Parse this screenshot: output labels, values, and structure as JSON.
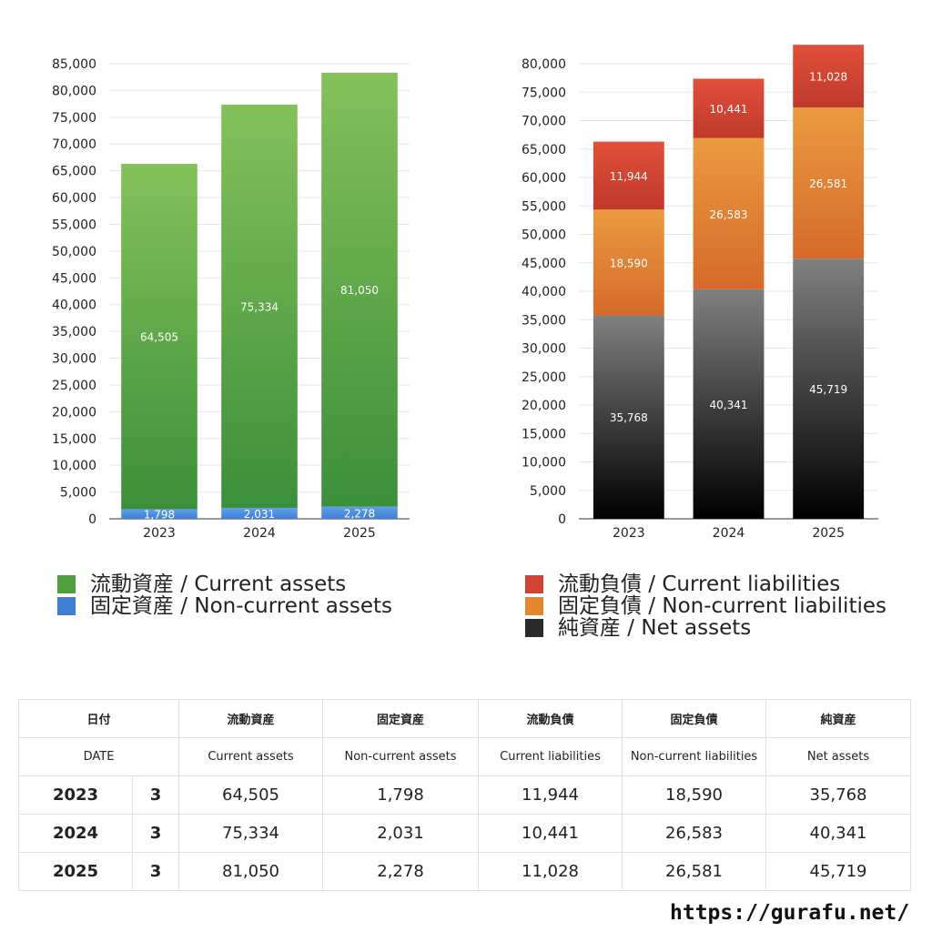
{
  "chart_data": [
    {
      "type": "bar",
      "stacked": true,
      "title": "",
      "xlabel": "",
      "ylabel": "",
      "categories": [
        "2023",
        "2024",
        "2025"
      ],
      "ylim": [
        0,
        85000
      ],
      "ytick_step": 5000,
      "grid": true,
      "legend_position": "bottom",
      "series": [
        {
          "name": "固定資産 / Non-current assets",
          "values": [
            1798,
            2031,
            2278
          ],
          "color": "#3f7fd3",
          "color_light": "#5fa0ea"
        },
        {
          "name": "流動資産 / Current assets",
          "values": [
            64505,
            75334,
            81050
          ],
          "color": "#3c8f3a",
          "color_light": "#84c15a"
        }
      ]
    },
    {
      "type": "bar",
      "stacked": true,
      "title": "",
      "xlabel": "",
      "ylabel": "",
      "categories": [
        "2023",
        "2024",
        "2025"
      ],
      "ylim": [
        0,
        80000
      ],
      "ytick_step": 5000,
      "grid": true,
      "legend_position": "bottom",
      "series": [
        {
          "name": "純資産 / Net assets",
          "values": [
            35768,
            40341,
            45719
          ],
          "color": "#000000",
          "color_light": "#808080"
        },
        {
          "name": "固定負債 / Non-current liabilities",
          "values": [
            18590,
            26583,
            26581
          ],
          "color": "#d56a2a",
          "color_light": "#eb9a40"
        },
        {
          "name": "流動負債 / Current liabilities",
          "values": [
            11944,
            10441,
            11028
          ],
          "color": "#c0392b",
          "color_light": "#e0503a"
        }
      ]
    }
  ],
  "legend_left": [
    {
      "label": "流動資産 / Current assets",
      "color": "#4e9f3d"
    },
    {
      "label": "固定資産 / Non-current assets",
      "color": "#3f7fd3"
    }
  ],
  "legend_right": [
    {
      "label": "流動負債 / Current liabilities",
      "color": "#d04433"
    },
    {
      "label": "固定負債 / Non-current liabilities",
      "color": "#e4872f"
    },
    {
      "label": "純資産 / Net assets",
      "color": "#2a2a2a"
    }
  ],
  "table": {
    "header_jp": [
      "日付",
      "流動資産",
      "固定資産",
      "流動負債",
      "固定負債",
      "純資産"
    ],
    "header_en": [
      "DATE",
      "Current assets",
      "Non-current assets",
      "Current liabilities",
      "Non-current liabilities",
      "Net assets"
    ],
    "rows": [
      {
        "year": "2023",
        "month": "3",
        "values": [
          "64,505",
          "1,798",
          "11,944",
          "18,590",
          "35,768"
        ]
      },
      {
        "year": "2024",
        "month": "3",
        "values": [
          "75,334",
          "2,031",
          "10,441",
          "26,583",
          "40,341"
        ]
      },
      {
        "year": "2025",
        "month": "3",
        "values": [
          "81,050",
          "2,278",
          "11,028",
          "26,581",
          "45,719"
        ]
      }
    ]
  },
  "footer": {
    "url": "https://gurafu.net/"
  }
}
